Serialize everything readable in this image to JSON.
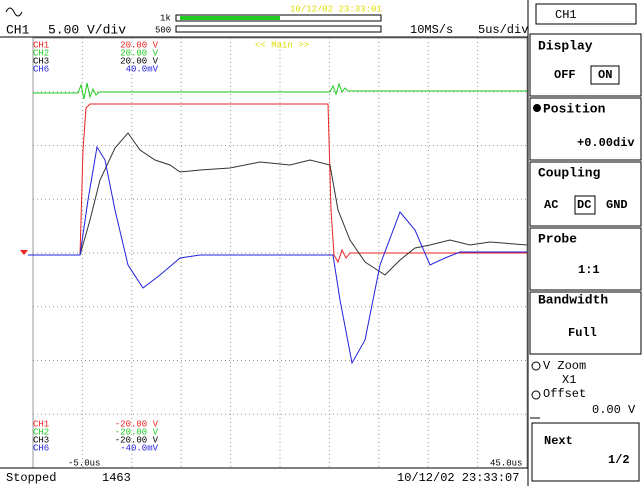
{
  "top_bar": {
    "channel": "CH1",
    "scale": "5.00 V/div",
    "zoom_top": "1k",
    "zoom_bottom": "500",
    "timestamp": "10/12/02 23:33:01",
    "sample_rate": "10MS/s",
    "time_div": "5us/div",
    "menu_channel": "CH1"
  },
  "main_label": "<< Main >>",
  "upper_labels": [
    {
      "ch": "CH1",
      "value": "20.00 V"
    },
    {
      "ch": "CH2",
      "value": "20.00 V"
    },
    {
      "ch": "CH3",
      "value": "20.00 V"
    },
    {
      "ch": "CH6",
      "value": "40.0mV"
    }
  ],
  "lower_labels": [
    {
      "ch": "CH1",
      "value": "-20.00 V"
    },
    {
      "ch": "CH2",
      "value": "-20.00 V"
    },
    {
      "ch": "CH3",
      "value": "-20.00 V"
    },
    {
      "ch": "CH6",
      "value": "-40.0mV"
    }
  ],
  "time_start": "-5.0us",
  "time_end": "45.0us",
  "status_bar": {
    "state": "Stopped",
    "count": "1463",
    "timestamp": "10/12/02 23:33:07"
  },
  "menu": {
    "display": {
      "title": "Display",
      "off": "OFF",
      "on": "ON"
    },
    "position": {
      "title": "Position",
      "value": "+0.00div"
    },
    "coupling": {
      "title": "Coupling",
      "ac": "AC",
      "dc": "DC",
      "gnd": "GND"
    },
    "probe": {
      "title": "Probe",
      "value": "1:1"
    },
    "bandwidth": {
      "title": "Bandwidth",
      "value": "Full"
    },
    "zoom": {
      "title": "V Zoom",
      "value": "X1",
      "offset_title": "Offset",
      "offset_value": "0.00 V"
    },
    "next": {
      "title": "Next",
      "page": "1/2"
    }
  }
}
